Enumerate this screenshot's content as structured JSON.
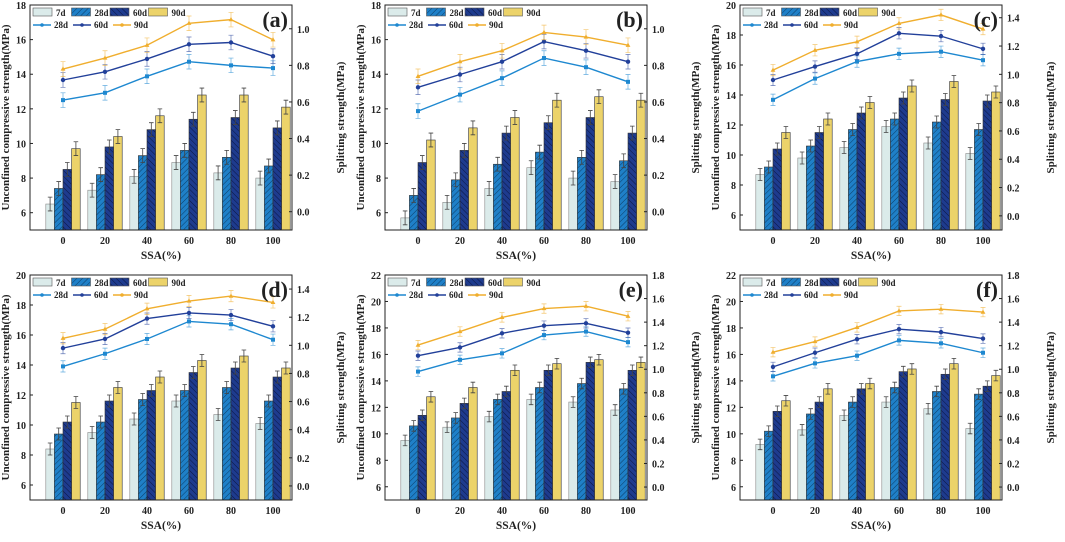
{
  "chart_data": [
    {
      "type": "bar",
      "panel_label": "(a)",
      "title": "",
      "xlabel": "SSA(%)",
      "ylabel": "Unconfined compressive strength(MPa)",
      "y2label": "Splitting strength(MPa)",
      "categories": [
        "0",
        "20",
        "40",
        "60",
        "80",
        "100"
      ],
      "ylim": [
        5,
        18
      ],
      "yticks": [
        6,
        8,
        10,
        12,
        14,
        16,
        18
      ],
      "y2lim": [
        -0.1,
        1.13
      ],
      "y2ticks": [
        "0.0",
        "0.2",
        "0.4",
        "0.6",
        "0.8",
        "1.0"
      ],
      "bar_series": [
        {
          "name": "7d",
          "values": [
            6.5,
            7.3,
            8.1,
            8.9,
            8.3,
            8.0
          ]
        },
        {
          "name": "28d",
          "values": [
            7.4,
            8.2,
            9.3,
            9.6,
            9.2,
            8.7
          ]
        },
        {
          "name": "60d",
          "values": [
            8.5,
            9.8,
            10.8,
            11.4,
            11.5,
            10.9
          ]
        },
        {
          "name": "90d",
          "values": [
            9.7,
            10.4,
            11.6,
            12.8,
            12.8,
            12.1
          ]
        }
      ],
      "line_series": [
        {
          "name": "28d",
          "values": [
            0.61,
            0.65,
            0.74,
            0.82,
            0.8,
            0.785
          ]
        },
        {
          "name": "60d",
          "values": [
            0.72,
            0.765,
            0.835,
            0.915,
            0.925,
            0.85
          ]
        },
        {
          "name": "90d",
          "values": [
            0.78,
            0.84,
            0.91,
            1.03,
            1.05,
            0.94
          ]
        }
      ]
    },
    {
      "type": "bar",
      "panel_label": "(b)",
      "title": "",
      "xlabel": "SSA(%)",
      "ylabel": "Unconfined compressive strength(MPa)",
      "y2label": "Splitting strength(MPa)",
      "categories": [
        "0",
        "20",
        "40",
        "60",
        "80",
        "100"
      ],
      "ylim": [
        5,
        18
      ],
      "yticks": [
        6,
        8,
        10,
        12,
        14,
        16,
        18
      ],
      "y2lim": [
        -0.1,
        1.13
      ],
      "y2ticks": [
        "0.0",
        "0.2",
        "0.4",
        "0.6",
        "0.8",
        "1.0"
      ],
      "bar_series": [
        {
          "name": "7d",
          "values": [
            5.7,
            6.6,
            7.4,
            8.6,
            8.0,
            7.8
          ]
        },
        {
          "name": "28d",
          "values": [
            7.0,
            7.9,
            8.8,
            9.5,
            9.2,
            9.0
          ]
        },
        {
          "name": "60d",
          "values": [
            8.9,
            9.6,
            10.6,
            11.2,
            11.5,
            10.6
          ]
        },
        {
          "name": "90d",
          "values": [
            10.2,
            10.9,
            11.5,
            12.5,
            12.7,
            12.5
          ]
        }
      ],
      "line_series": [
        {
          "name": "28d",
          "values": [
            0.55,
            0.64,
            0.73,
            0.84,
            0.79,
            0.71
          ]
        },
        {
          "name": "60d",
          "values": [
            0.68,
            0.75,
            0.82,
            0.93,
            0.88,
            0.82
          ]
        },
        {
          "name": "90d",
          "values": [
            0.74,
            0.82,
            0.88,
            0.98,
            0.955,
            0.91
          ]
        }
      ]
    },
    {
      "type": "bar",
      "panel_label": "(c)",
      "title": "",
      "xlabel": "SSA(%)",
      "ylabel": "Unconfined compressive strength(MPa)",
      "y2label": "Splitting strength(MPa)",
      "categories": [
        "0",
        "20",
        "40",
        "60",
        "80",
        "100"
      ],
      "ylim": [
        5,
        20
      ],
      "yticks": [
        6,
        8,
        10,
        12,
        14,
        16,
        18,
        20
      ],
      "y2lim": [
        -0.1,
        1.49
      ],
      "y2ticks": [
        "0.0",
        "0.2",
        "0.4",
        "0.6",
        "0.8",
        "1.0",
        "1.2",
        "1.4"
      ],
      "bar_series": [
        {
          "name": "7d",
          "values": [
            8.7,
            9.8,
            10.5,
            11.9,
            10.8,
            10.1
          ]
        },
        {
          "name": "28d",
          "values": [
            9.2,
            10.6,
            11.7,
            12.4,
            12.2,
            11.7
          ]
        },
        {
          "name": "60d",
          "values": [
            10.4,
            11.5,
            12.8,
            13.8,
            13.7,
            13.6
          ]
        },
        {
          "name": "90d",
          "values": [
            11.5,
            12.4,
            13.5,
            14.6,
            14.9,
            14.2
          ]
        }
      ],
      "line_series": [
        {
          "name": "28d",
          "values": [
            0.82,
            0.97,
            1.09,
            1.145,
            1.16,
            1.1
          ]
        },
        {
          "name": "60d",
          "values": [
            0.96,
            1.055,
            1.145,
            1.29,
            1.27,
            1.18
          ]
        },
        {
          "name": "90d",
          "values": [
            1.03,
            1.17,
            1.23,
            1.36,
            1.42,
            1.32
          ]
        }
      ]
    },
    {
      "type": "bar",
      "panel_label": "(d)",
      "title": "",
      "xlabel": "SSA(%)",
      "ylabel": "Unconfined compressive strength(MPa)",
      "y2label": "Splitting strength(MPa)",
      "categories": [
        "0",
        "20",
        "40",
        "60",
        "80",
        "100"
      ],
      "ylim": [
        5,
        20
      ],
      "yticks": [
        6,
        8,
        10,
        12,
        14,
        16,
        18,
        20
      ],
      "y2lim": [
        -0.1,
        1.5
      ],
      "y2ticks": [
        "0.0",
        "0.2",
        "0.4",
        "0.6",
        "0.8",
        "1.0",
        "1.2",
        "1.4"
      ],
      "bar_series": [
        {
          "name": "7d",
          "values": [
            8.4,
            9.5,
            10.4,
            11.6,
            10.7,
            10.1
          ]
        },
        {
          "name": "28d",
          "values": [
            9.4,
            10.2,
            11.7,
            12.3,
            12.5,
            11.6
          ]
        },
        {
          "name": "60d",
          "values": [
            10.2,
            11.6,
            12.3,
            13.5,
            13.8,
            13.2
          ]
        },
        {
          "name": "90d",
          "values": [
            11.5,
            12.5,
            13.2,
            14.3,
            14.6,
            13.8
          ]
        }
      ],
      "line_series": [
        {
          "name": "28d",
          "values": [
            0.85,
            0.94,
            1.045,
            1.17,
            1.15,
            1.04
          ]
        },
        {
          "name": "60d",
          "values": [
            0.98,
            1.045,
            1.19,
            1.23,
            1.215,
            1.135
          ]
        },
        {
          "name": "90d",
          "values": [
            1.05,
            1.115,
            1.26,
            1.315,
            1.35,
            1.305
          ]
        }
      ]
    },
    {
      "type": "bar",
      "panel_label": "(e)",
      "title": "",
      "xlabel": "SSA(%)",
      "ylabel": "Unconfined compressive strength(MPa)",
      "y2label": "Splitting strength(MPa)",
      "categories": [
        "0",
        "20",
        "40",
        "60",
        "80",
        "100"
      ],
      "ylim": [
        5,
        22
      ],
      "yticks": [
        6,
        8,
        10,
        12,
        14,
        16,
        18,
        20,
        22
      ],
      "y2lim": [
        -0.11,
        1.8
      ],
      "y2ticks": [
        "0.0",
        "0.2",
        "0.4",
        "0.6",
        "0.8",
        "1.0",
        "1.2",
        "1.4",
        "1.6",
        "1.8"
      ],
      "bar_series": [
        {
          "name": "7d",
          "values": [
            9.5,
            10.5,
            11.3,
            12.6,
            12.4,
            11.8
          ]
        },
        {
          "name": "28d",
          "values": [
            10.6,
            11.2,
            12.6,
            13.5,
            13.8,
            13.4
          ]
        },
        {
          "name": "60d",
          "values": [
            11.4,
            12.3,
            13.2,
            14.8,
            15.4,
            14.8
          ]
        },
        {
          "name": "90d",
          "values": [
            12.8,
            13.5,
            14.8,
            15.3,
            15.6,
            15.4
          ]
        }
      ],
      "line_series": [
        {
          "name": "28d",
          "values": [
            0.98,
            1.08,
            1.135,
            1.29,
            1.32,
            1.23
          ]
        },
        {
          "name": "60d",
          "values": [
            1.115,
            1.185,
            1.305,
            1.37,
            1.39,
            1.31
          ]
        },
        {
          "name": "90d",
          "values": [
            1.205,
            1.32,
            1.44,
            1.515,
            1.535,
            1.45
          ]
        }
      ]
    },
    {
      "type": "bar",
      "panel_label": "(f)",
      "title": "",
      "xlabel": "SSA(%)",
      "ylabel": "Unconfined compressive strength(MPa)",
      "y2label": "Splitting strength(MPa)",
      "categories": [
        "0",
        "20",
        "40",
        "60",
        "80",
        "100"
      ],
      "ylim": [
        5,
        22
      ],
      "yticks": [
        6,
        8,
        10,
        12,
        14,
        16,
        18,
        20,
        22
      ],
      "y2lim": [
        -0.11,
        1.8
      ],
      "y2ticks": [
        "0.0",
        "0.2",
        "0.4",
        "0.6",
        "0.8",
        "1.0",
        "1.2",
        "1.4",
        "1.6",
        "1.8"
      ],
      "bar_series": [
        {
          "name": "7d",
          "values": [
            9.2,
            10.3,
            11.4,
            12.4,
            11.9,
            10.4
          ]
        },
        {
          "name": "28d",
          "values": [
            10.2,
            11.5,
            12.4,
            13.5,
            13.2,
            13.0
          ]
        },
        {
          "name": "60d",
          "values": [
            11.7,
            12.4,
            13.4,
            14.7,
            14.5,
            13.6
          ]
        },
        {
          "name": "90d",
          "values": [
            12.5,
            13.4,
            13.8,
            14.9,
            15.3,
            14.4
          ]
        }
      ],
      "line_series": [
        {
          "name": "28d",
          "values": [
            0.94,
            1.05,
            1.115,
            1.245,
            1.22,
            1.14
          ]
        },
        {
          "name": "60d",
          "values": [
            1.02,
            1.14,
            1.255,
            1.34,
            1.315,
            1.26
          ]
        },
        {
          "name": "90d",
          "values": [
            1.145,
            1.235,
            1.355,
            1.495,
            1.51,
            1.485
          ]
        }
      ]
    }
  ],
  "colors": {
    "bar_7d": "#dbebea",
    "bar_28d": "#1f80c8",
    "bar_60d": "#1e3b8e",
    "bar_90d": "#ecd36a",
    "line_28d": "#1e88d0",
    "line_60d": "#22409a",
    "line_90d": "#f0ae2e"
  },
  "error_bars": {
    "bar": 0.4,
    "line": 0.04
  }
}
